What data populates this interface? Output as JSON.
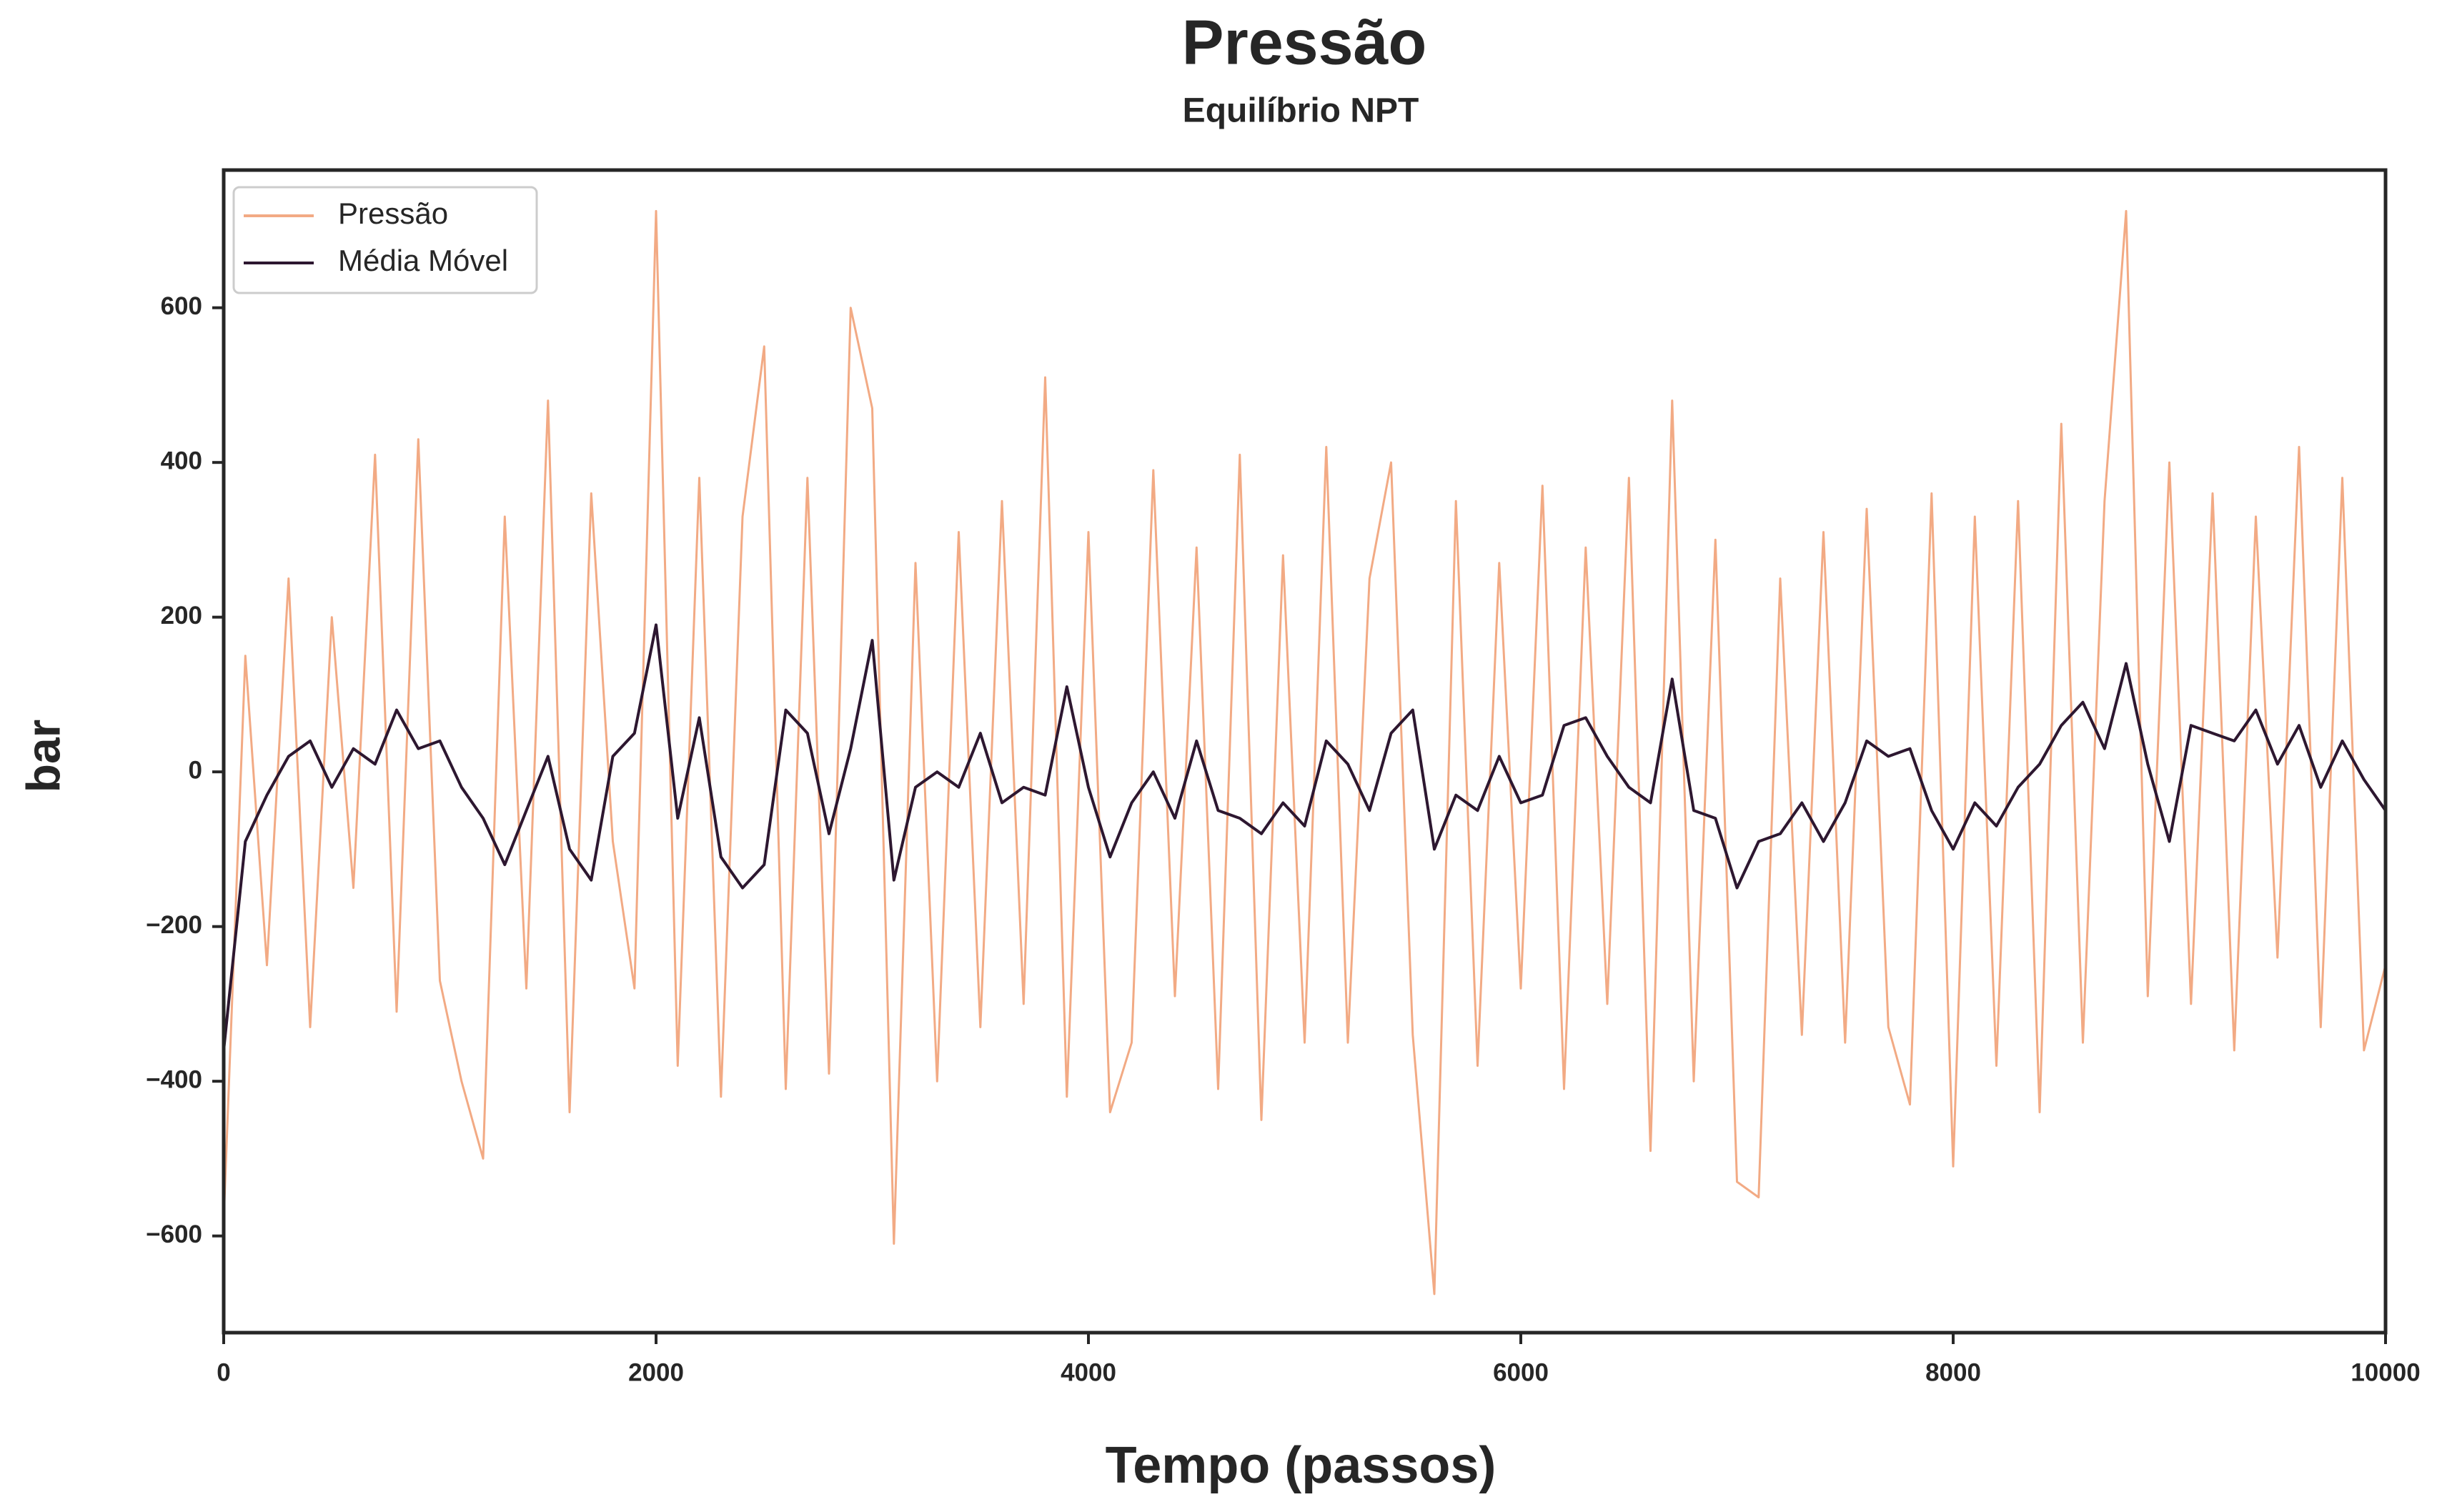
{
  "chart_data": {
    "type": "line",
    "title": "Pressão",
    "subtitle": "Equilíbrio NPT",
    "x_label": "Tempo (passos)",
    "y_label": "bar",
    "x": [
      0,
      100,
      200,
      300,
      400,
      500,
      600,
      700,
      800,
      900,
      1000,
      1100,
      1200,
      1300,
      1400,
      1500,
      1600,
      1700,
      1800,
      1900,
      2000,
      2100,
      2200,
      2300,
      2400,
      2500,
      2600,
      2700,
      2800,
      2900,
      3000,
      3100,
      3200,
      3300,
      3400,
      3500,
      3600,
      3700,
      3800,
      3900,
      4000,
      4100,
      4200,
      4300,
      4400,
      4500,
      4600,
      4700,
      4800,
      4900,
      5000,
      5100,
      5200,
      5300,
      5400,
      5500,
      5600,
      5700,
      5800,
      5900,
      6000,
      6100,
      6200,
      6300,
      6400,
      6500,
      6600,
      6700,
      6800,
      6900,
      7000,
      7100,
      7200,
      7300,
      7400,
      7500,
      7600,
      7700,
      7800,
      7900,
      8000,
      8100,
      8200,
      8300,
      8400,
      8500,
      8600,
      8700,
      8800,
      8900,
      9000,
      9100,
      9200,
      9300,
      9400,
      9500,
      9600,
      9700,
      9800,
      9900,
      10000
    ],
    "series": [
      {
        "name": "Pressão",
        "color": "#f2aa84",
        "values": [
          -580,
          150,
          -250,
          250,
          -330,
          200,
          -150,
          410,
          -310,
          430,
          -270,
          -400,
          -500,
          330,
          -280,
          480,
          -440,
          360,
          -90,
          -280,
          725,
          -380,
          380,
          -420,
          330,
          550,
          -410,
          380,
          -390,
          600,
          470,
          -610,
          270,
          -400,
          310,
          -330,
          350,
          -300,
          510,
          -420,
          310,
          -440,
          -350,
          390,
          -290,
          290,
          -410,
          410,
          -450,
          280,
          -350,
          420,
          -350,
          250,
          400,
          -340,
          -675,
          350,
          -380,
          270,
          -280,
          370,
          -410,
          290,
          -300,
          380,
          -490,
          480,
          -400,
          300,
          -530,
          -550,
          250,
          -340,
          310,
          -350,
          340,
          -330,
          -430,
          360,
          -510,
          330,
          -380,
          350,
          -440,
          450,
          -350,
          350,
          725,
          -290,
          400,
          -300,
          360,
          -360,
          330,
          -240,
          420,
          -330,
          380,
          -360,
          -250
        ]
      },
      {
        "name": "Média Móvel",
        "color": "#2d1730",
        "values": [
          -360,
          -90,
          -30,
          20,
          40,
          -20,
          30,
          10,
          80,
          30,
          40,
          -20,
          -60,
          -120,
          -50,
          20,
          -100,
          -140,
          20,
          50,
          190,
          -60,
          70,
          -110,
          -150,
          -120,
          80,
          50,
          -80,
          30,
          170,
          -140,
          -20,
          0,
          -20,
          50,
          -40,
          -20,
          -30,
          110,
          -20,
          -110,
          -40,
          0,
          -60,
          40,
          -50,
          -60,
          -80,
          -40,
          -70,
          40,
          10,
          -50,
          50,
          80,
          -100,
          -30,
          -50,
          20,
          -40,
          -30,
          60,
          70,
          20,
          -20,
          -40,
          120,
          -50,
          -60,
          -150,
          -90,
          -80,
          -40,
          -90,
          -40,
          40,
          20,
          30,
          -50,
          -100,
          -40,
          -70,
          -20,
          10,
          60,
          90,
          30,
          140,
          10,
          -90,
          60,
          50,
          40,
          80,
          10,
          60,
          -20,
          40,
          -10,
          -50
        ]
      }
    ],
    "xlim": [
      0,
      10000
    ],
    "xticks": [
      0,
      2000,
      4000,
      6000,
      8000,
      10000
    ],
    "ylim": [
      -725,
      778
    ],
    "yticks": [
      {
        "value": -600,
        "label": "−600"
      },
      {
        "value": -400,
        "label": "−400"
      },
      {
        "value": -200,
        "label": "−200"
      },
      0,
      200,
      400,
      600
    ],
    "legend": "upper left",
    "grid": false
  }
}
